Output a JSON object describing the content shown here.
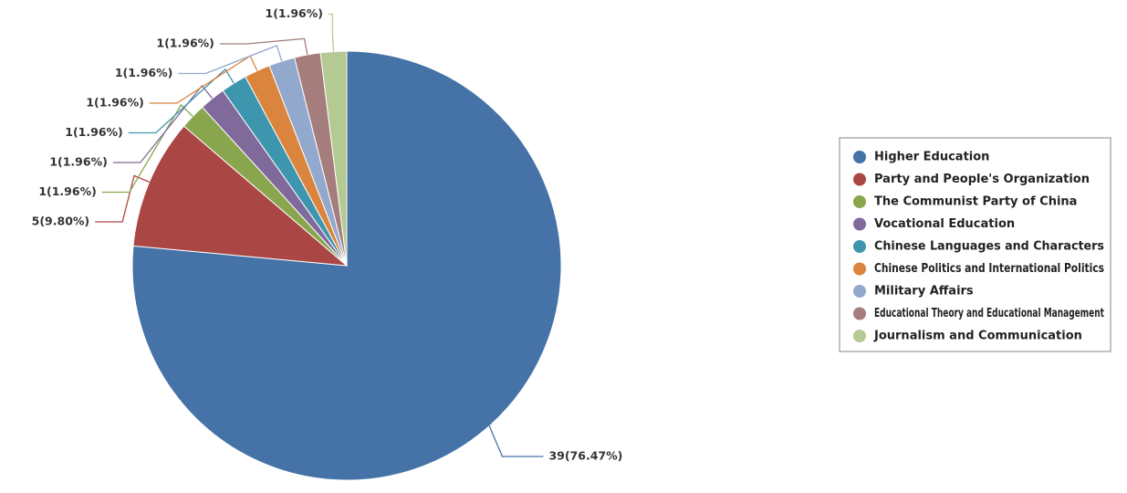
{
  "chart_data": {
    "type": "pie",
    "categories": [
      "Higher Education",
      "Party and People's Organization",
      "The Communist Party of China",
      "Vocational Education",
      "Chinese Languages and Characters",
      "Chinese Politics and International Politics",
      "Military Affairs",
      "Educational Theory and Educational Management",
      "Journalism and Communication"
    ],
    "values": [
      39,
      5,
      1,
      1,
      1,
      1,
      1,
      1,
      1
    ],
    "value_labels": [
      "39(76.47%)",
      "5(9.80%)",
      "1(1.96%)",
      "1(1.96%)",
      "1(1.96%)",
      "1(1.96%)",
      "1(1.96%)",
      "1(1.96%)",
      "1(1.96%)"
    ],
    "colors": [
      "#4572a7",
      "#aa4643",
      "#89a54e",
      "#80699b",
      "#3d96ae",
      "#db843d",
      "#92a8cd",
      "#a47d7c",
      "#b5ca92"
    ],
    "legend": "right"
  }
}
